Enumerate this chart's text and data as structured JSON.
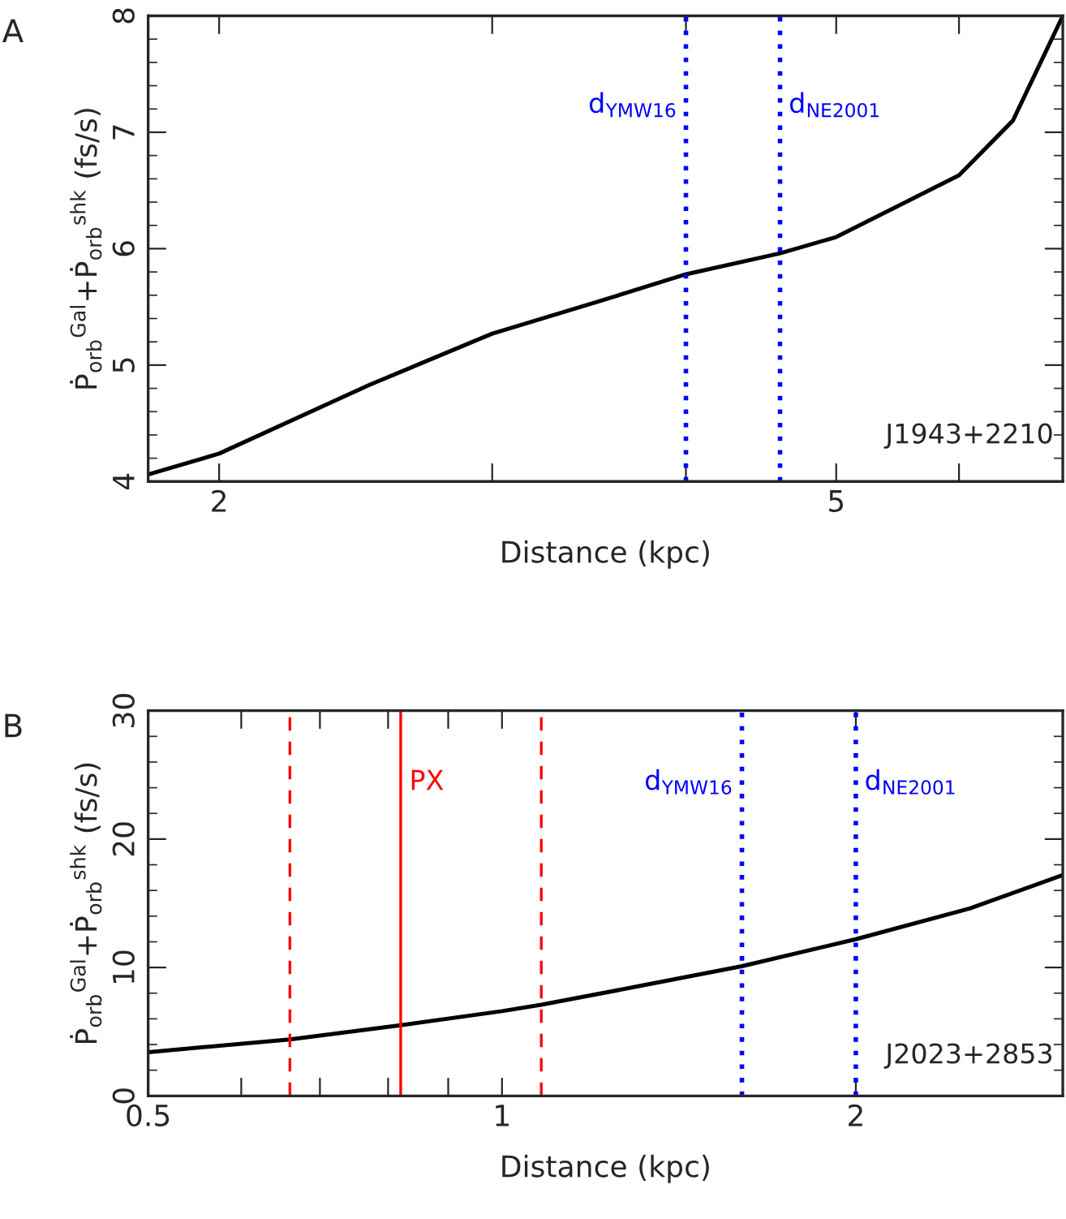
{
  "chart_data": [
    {
      "type": "line",
      "xlabel": "Distance (kpc)",
      "ylabel": "Ṗ$_{orb}$$^{Gal}$+Ṗ$_{orb}$$^{shk}$ (fs/s)",
      "log": "x",
      "grid": false,
      "annotations": [
        "A",
        "J1943+2210"
      ],
      "x": [
        1.8,
        2,
        2.5,
        3,
        3.5,
        4,
        4.6,
        5,
        6,
        6.5,
        7
      ],
      "series": [
        {
          "color": "#000000",
          "values": [
            4.06,
            4.24,
            4.83,
            5.27,
            5.54,
            5.78,
            5.96,
            6.1,
            6.63,
            7.1,
            8
          ]
        }
      ],
      "xlim": [
        1.8,
        7
      ],
      "xticks": [
        2,
        {
          "value": 3,
          "label": null
        },
        {
          "value": 4,
          "label": null
        },
        5,
        {
          "value": 6,
          "label": null
        }
      ],
      "ylim": [
        4,
        8
      ],
      "yticks": [
        4,
        5,
        6,
        7,
        8
      ],
      "ref_lines": [
        {
          "axis": "x",
          "value": 4.0,
          "label": "d$_{YMW16}$",
          "color": "#0000ff",
          "line_style": "dotted"
        },
        {
          "axis": "x",
          "value": 4.6,
          "label": "d$_{NE2001}$",
          "color": "#0000ff",
          "line_style": "dotted"
        }
      ]
    },
    {
      "type": "line",
      "xlabel": "Distance (kpc)",
      "ylabel": "Ṗ$_{orb}$$^{Gal}$+Ṗ$_{orb}$$^{shk}$ (fs/s)",
      "log": "x",
      "grid": false,
      "annotations": [
        "B",
        "J2023+2853"
      ],
      "x": [
        0.5,
        0.66,
        0.82,
        1,
        1.08,
        1.3,
        1.6,
        2,
        2.5,
        3
      ],
      "series": [
        {
          "color": "#000000",
          "values": [
            3.4,
            4.4,
            5.5,
            6.6,
            7.1,
            8.5,
            10.1,
            12.2,
            14.6,
            17.2
          ]
        }
      ],
      "xlim": [
        0.5,
        3
      ],
      "xticks": [
        0.5,
        {
          "value": 0.6,
          "label": null
        },
        {
          "value": 0.7,
          "label": null
        },
        {
          "value": 0.8,
          "label": null
        },
        {
          "value": 0.9,
          "label": null
        },
        1,
        2
      ],
      "ylim": [
        0,
        30
      ],
      "yticks": [
        0,
        10,
        20,
        30
      ],
      "ref_lines": [
        {
          "axis": "x",
          "value": 0.66,
          "label": null,
          "color": "#ff0000",
          "line_style": "dashed"
        },
        {
          "axis": "x",
          "value": 0.82,
          "label": "PX",
          "color": "#ff0000",
          "line_style": "solid"
        },
        {
          "axis": "x",
          "value": 1.08,
          "label": null,
          "color": "#ff0000",
          "line_style": "dashed"
        },
        {
          "axis": "x",
          "value": 1.6,
          "label": "d$_{YMW16}$",
          "color": "#0000ff",
          "line_style": "dotted"
        },
        {
          "axis": "x",
          "value": 2.0,
          "label": "d$_{NE2001}$",
          "color": "#0000ff",
          "line_style": "dotted"
        }
      ]
    }
  ]
}
